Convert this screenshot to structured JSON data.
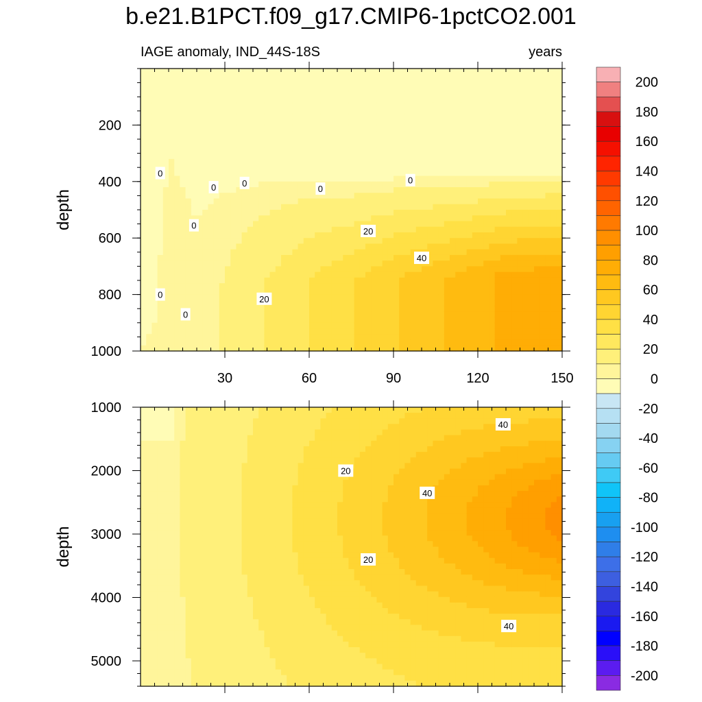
{
  "chart_data": {
    "type": "heatmap",
    "title": "b.e21.B1PCT.f09_g17.CMIP6-1pctCO2.001",
    "left_subtitle": "IAGE anomaly, IND_44S-18S",
    "right_subtitle": "years",
    "panels": [
      {
        "id": "upper",
        "ylabel": "depth",
        "xlim": [
          0,
          150
        ],
        "ylim": [
          0,
          1000
        ],
        "x_ticks": [
          30,
          60,
          90,
          120,
          150
        ],
        "y_ticks": [
          200,
          400,
          600,
          800,
          1000
        ],
        "y_inverted": true,
        "zero_contour_depth_by_year": [
          [
            0,
            1000
          ],
          [
            5,
            900
          ],
          [
            10,
            300
          ],
          [
            20,
            540
          ],
          [
            30,
            440
          ],
          [
            45,
            400
          ],
          [
            60,
            390
          ],
          [
            75,
            400
          ],
          [
            90,
            390
          ],
          [
            105,
            390
          ],
          [
            120,
            385
          ],
          [
            150,
            370
          ]
        ],
        "contour_labels": [
          {
            "text": "0",
            "x": 7,
            "y": 370
          },
          {
            "text": "0",
            "x": 26,
            "y": 420
          },
          {
            "text": "0",
            "x": 37,
            "y": 405
          },
          {
            "text": "0",
            "x": 64,
            "y": 425
          },
          {
            "text": "0",
            "x": 96,
            "y": 395
          },
          {
            "text": "0",
            "x": 19,
            "y": 555
          },
          {
            "text": "20",
            "x": 81,
            "y": 575
          },
          {
            "text": "40",
            "x": 100,
            "y": 670
          },
          {
            "text": "20",
            "x": 44,
            "y": 815
          },
          {
            "text": "0",
            "x": 7,
            "y": 800
          },
          {
            "text": "0",
            "x": 16,
            "y": 870
          }
        ]
      },
      {
        "id": "lower",
        "ylabel": "depth",
        "xlim": [
          0,
          150
        ],
        "ylim": [
          1000,
          5400
        ],
        "x_ticks": [
          30,
          60,
          90,
          120,
          150
        ],
        "y_ticks": [
          1000,
          2000,
          3000,
          4000,
          5000
        ],
        "y_inverted": true,
        "contour_labels": [
          {
            "text": "40",
            "x": 129,
            "y": 1270
          },
          {
            "text": "20",
            "x": 73,
            "y": 2000
          },
          {
            "text": "40",
            "x": 102,
            "y": 2350
          },
          {
            "text": "20",
            "x": 81,
            "y": 3400
          },
          {
            "text": "40",
            "x": 131,
            "y": 4450
          }
        ]
      }
    ],
    "colorbar": {
      "levels": [
        -210,
        -200,
        -190,
        -180,
        -170,
        -160,
        -150,
        -140,
        -130,
        -120,
        -110,
        -100,
        -90,
        -80,
        -70,
        -60,
        -50,
        -40,
        -30,
        -20,
        -10,
        0,
        10,
        20,
        30,
        40,
        50,
        60,
        70,
        80,
        90,
        100,
        110,
        120,
        130,
        140,
        150,
        160,
        170,
        180,
        190,
        200,
        210
      ],
      "colors": [
        "#8a2be2",
        "#5b1cf0",
        "#2a0ff8",
        "#0000ff",
        "#1a1af0",
        "#2a2ae0",
        "#3344dd",
        "#3d5fe0",
        "#3d6fe8",
        "#2f7ee8",
        "#1e8ef0",
        "#18a0f0",
        "#10b2f8",
        "#10c4f8",
        "#3fcaf5",
        "#66cbf2",
        "#86d2f2",
        "#a3d9f0",
        "#b6e0f3",
        "#c8e6f4",
        "#fffcb6",
        "#fff59b",
        "#fff07a",
        "#ffe85e",
        "#ffe045",
        "#ffd532",
        "#ffc820",
        "#ffbb10",
        "#ffad05",
        "#ff9f00",
        "#ff8f00",
        "#ff7a00",
        "#ff6400",
        "#ff5000",
        "#ff3a00",
        "#ff2400",
        "#f51000",
        "#e80000",
        "#d81010",
        "#e45050",
        "#f08080",
        "#f8b0b4"
      ],
      "tick_labels": [
        "-200",
        "-180",
        "-160",
        "-140",
        "-120",
        "-100",
        "-80",
        "-60",
        "-40",
        "-20",
        "0",
        "20",
        "40",
        "60",
        "80",
        "100",
        "120",
        "140",
        "160",
        "180",
        "200"
      ]
    }
  }
}
